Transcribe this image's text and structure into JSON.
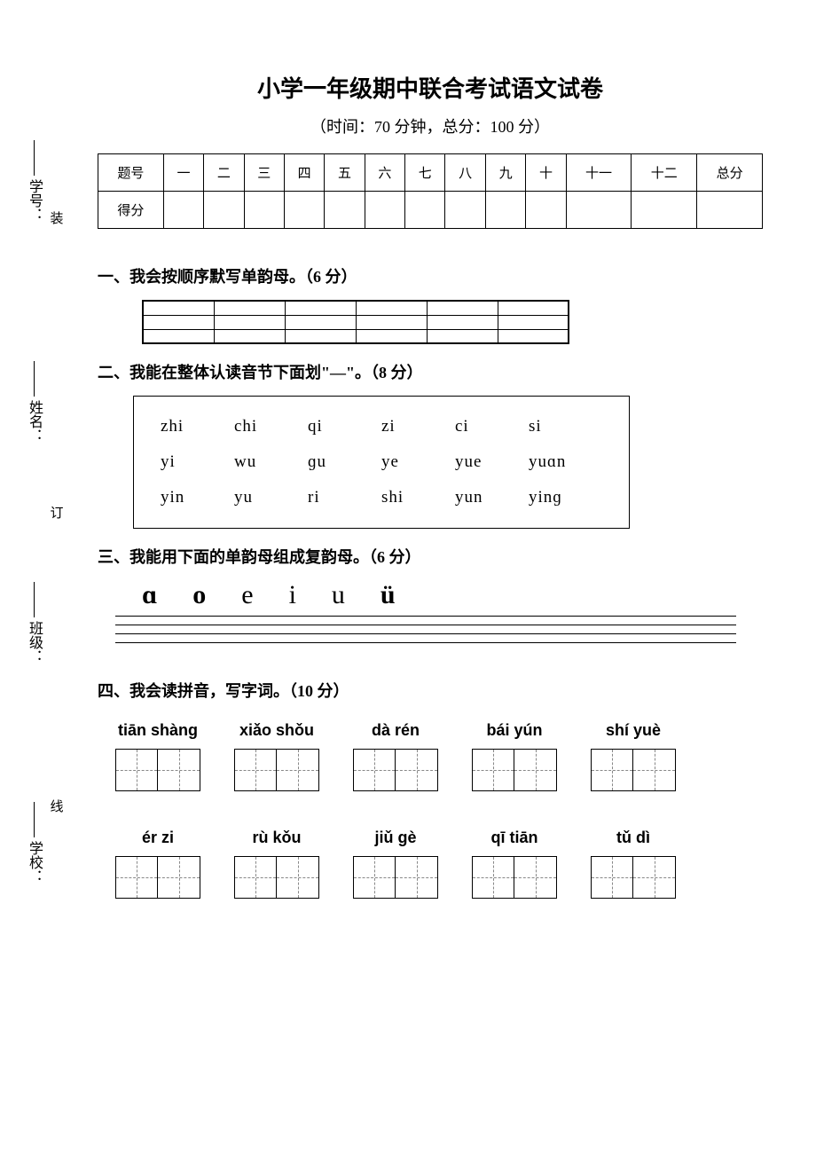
{
  "title": "小学一年级期中联合考试语文试卷",
  "subtitle": "（时间：70 分钟，总分：100 分）",
  "sidebar": {
    "labels": [
      "学号：",
      "姓名：",
      "班级：",
      "学校："
    ],
    "binding_chars": [
      "装",
      "订",
      "线"
    ]
  },
  "score_table": {
    "row_header_1": "题号",
    "row_header_2": "得分",
    "columns": [
      "一",
      "二",
      "三",
      "四",
      "五",
      "六",
      "七",
      "八",
      "九",
      "十",
      "十一",
      "十二",
      "总分"
    ]
  },
  "sections": {
    "q1": "一、我会按顺序默写单韵母。（6 分）",
    "q2": "二、我能在整体认读音节下面划\"—\"。（8 分）",
    "q3": "三、我能用下面的单韵母组成复韵母。（6 分）",
    "q4": "四、我会读拼音，写字词。（10 分）"
  },
  "q1": {
    "cols": 6,
    "rows": 3
  },
  "q2": {
    "rows": [
      [
        "zhi",
        "chi",
        "qi",
        "zi",
        "ci",
        "si"
      ],
      [
        "yi",
        "wu",
        "ɡu",
        "ye",
        "yue",
        "yuɑn"
      ],
      [
        "yin",
        "yu",
        "ri",
        "shi",
        "yun",
        "yinɡ"
      ]
    ]
  },
  "q3": {
    "letters": [
      "ɑ",
      "o",
      "e",
      "i",
      "u",
      "ü"
    ],
    "bold_flags": [
      true,
      true,
      false,
      false,
      false,
      true
    ],
    "line_count": 3
  },
  "q4": {
    "row1": [
      {
        "pinyin": "tiān shànɡ",
        "boxes": 2
      },
      {
        "pinyin": "xiǎo shǒu",
        "boxes": 2
      },
      {
        "pinyin": "dà rén",
        "boxes": 2
      },
      {
        "pinyin": "bái  yún",
        "boxes": 2
      },
      {
        "pinyin": "shí yuè",
        "boxes": 2
      }
    ],
    "row2": [
      {
        "pinyin": "ér   zi",
        "boxes": 2
      },
      {
        "pinyin": "rù   kǒu",
        "boxes": 2
      },
      {
        "pinyin": "jiǔ  ɡè",
        "boxes": 2
      },
      {
        "pinyin": "qī   tiān",
        "boxes": 2
      },
      {
        "pinyin": "tǔ   dì",
        "boxes": 2
      }
    ]
  },
  "style": {
    "page_bg": "#ffffff",
    "text_color": "#000000",
    "border_color": "#000000",
    "dash_color": "#888888",
    "title_fontsize": 26,
    "subtitle_fontsize": 18,
    "section_fontsize": 18,
    "q2_fontsize": 19,
    "q3_fontsize": 30,
    "pinyin_fontsize": 18,
    "char_box_size": 48
  }
}
